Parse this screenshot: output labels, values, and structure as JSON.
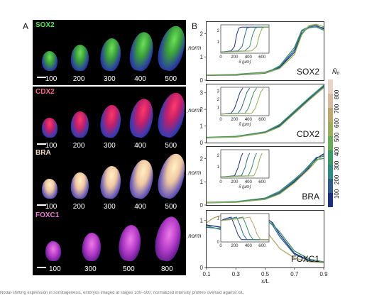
{
  "figure": {
    "panel_a_letter": "A",
    "panel_b_letter": "B",
    "caption": "Nodal-shifting expression in somitogenesis, embryos imaged at stages 100–500; normalized intensity profiles overlaid against x/L"
  },
  "micrographs": [
    {
      "marker": "SOX2",
      "label_color": "#62e25a",
      "stages": [
        "100",
        "200",
        "300",
        "400",
        "500"
      ],
      "tissue": "green"
    },
    {
      "marker": "CDX2",
      "label_color": "#f46a8a",
      "stages": [
        "100",
        "200",
        "300",
        "400",
        "500"
      ],
      "tissue": "red"
    },
    {
      "marker": "BRA",
      "label_color": "#f2d8c8",
      "stages": [
        "100",
        "200",
        "300",
        "400",
        "500"
      ],
      "tissue": "yellow"
    },
    {
      "marker": "FOXC1",
      "label_color": "#ea7ad6",
      "stages": [
        "100",
        "300",
        "500",
        "800"
      ],
      "tissue": "magenta"
    }
  ],
  "chart_data": [
    {
      "type": "line",
      "title": "SOX2",
      "ylabel": "I_norm",
      "ylim": [
        0,
        2.5
      ],
      "yticks": [
        "0",
        "1",
        "2"
      ],
      "xlim": [
        0.1,
        0.9
      ],
      "series": [
        {
          "color": "#1c2f7a",
          "x": [
            0.1,
            0.3,
            0.5,
            0.55,
            0.6,
            0.7,
            0.75,
            0.8,
            0.85,
            0.9
          ],
          "y": [
            0.2,
            0.22,
            0.3,
            0.4,
            0.55,
            1.2,
            2.0,
            2.3,
            2.35,
            2.2
          ]
        },
        {
          "color": "#2e6a8e",
          "x": [
            0.1,
            0.3,
            0.5,
            0.55,
            0.6,
            0.7,
            0.75,
            0.8,
            0.85,
            0.9
          ],
          "y": [
            0.2,
            0.24,
            0.32,
            0.42,
            0.58,
            1.3,
            2.1,
            2.25,
            2.3,
            2.25
          ]
        },
        {
          "color": "#3f8e6b",
          "x": [
            0.1,
            0.3,
            0.5,
            0.55,
            0.6,
            0.7,
            0.75,
            0.8,
            0.85,
            0.9
          ],
          "y": [
            0.22,
            0.25,
            0.34,
            0.45,
            0.62,
            1.4,
            2.15,
            2.3,
            2.28,
            2.15
          ]
        },
        {
          "color": "#93ad5a",
          "x": [
            0.1,
            0.3,
            0.5,
            0.55,
            0.6,
            0.7,
            0.75,
            0.8,
            0.85,
            0.9
          ],
          "y": [
            0.21,
            0.23,
            0.31,
            0.4,
            0.5,
            1.1,
            1.95,
            2.35,
            2.4,
            2.3
          ]
        }
      ],
      "inset": {
        "xticks": [
          "0",
          "200",
          "400",
          "600"
        ],
        "yticks": [
          "1",
          "2"
        ],
        "ylim": [
          0,
          2.5
        ],
        "xlim": [
          0,
          700
        ],
        "xlabel": "x̃ (μm)",
        "series": [
          {
            "color": "#1c2f7a",
            "x": [
              0,
              150,
              200,
              230,
              260,
              300,
              700
            ],
            "y": [
              0.1,
              0.2,
              0.6,
              1.6,
              2.2,
              2.3,
              2.3
            ]
          },
          {
            "color": "#2e6a8e",
            "x": [
              0,
              250,
              310,
              350,
              380,
              420,
              700
            ],
            "y": [
              0.1,
              0.2,
              0.6,
              1.6,
              2.2,
              2.3,
              2.3
            ]
          },
          {
            "color": "#3f8e6b",
            "x": [
              0,
              350,
              420,
              460,
              500,
              540,
              700
            ],
            "y": [
              0.1,
              0.2,
              0.6,
              1.6,
              2.2,
              2.3,
              2.3
            ]
          },
          {
            "color": "#93ad5a",
            "x": [
              0,
              450,
              520,
              560,
              600,
              640,
              700
            ],
            "y": [
              0.1,
              0.2,
              0.6,
              1.6,
              2.2,
              2.3,
              2.3
            ]
          }
        ]
      }
    },
    {
      "type": "line",
      "title": "CDX2",
      "ylabel": "I_norm",
      "ylim": [
        0,
        3.5
      ],
      "yticks": [
        "0",
        "1",
        "2",
        "3"
      ],
      "xlim": [
        0.1,
        0.9
      ],
      "series": [
        {
          "color": "#1c2f7a",
          "x": [
            0.1,
            0.3,
            0.5,
            0.6,
            0.7,
            0.8,
            0.9
          ],
          "y": [
            0.3,
            0.35,
            0.6,
            1.0,
            1.8,
            2.6,
            3.4
          ]
        },
        {
          "color": "#2e6a8e",
          "x": [
            0.1,
            0.3,
            0.5,
            0.6,
            0.7,
            0.8,
            0.9
          ],
          "y": [
            0.28,
            0.35,
            0.62,
            1.05,
            1.85,
            2.65,
            3.35
          ]
        },
        {
          "color": "#3f8e6b",
          "x": [
            0.1,
            0.3,
            0.5,
            0.6,
            0.7,
            0.8,
            0.9
          ],
          "y": [
            0.32,
            0.38,
            0.65,
            1.1,
            1.9,
            2.7,
            3.45
          ]
        },
        {
          "color": "#93ad5a",
          "x": [
            0.1,
            0.3,
            0.5,
            0.6,
            0.7,
            0.8,
            0.9
          ],
          "y": [
            0.3,
            0.33,
            0.58,
            0.95,
            1.75,
            2.55,
            3.3
          ]
        }
      ],
      "inset": {
        "xticks": [
          "0",
          "200",
          "400",
          "600"
        ],
        "yticks": [
          "1",
          "2",
          "3"
        ],
        "ylim": [
          0,
          3.5
        ],
        "xlim": [
          0,
          700
        ],
        "xlabel": "x̃ (μm)",
        "series": [
          {
            "color": "#1c2f7a",
            "x": [
              0,
              150,
              200,
              240,
              280,
              320
            ],
            "y": [
              0.2,
              0.3,
              0.9,
              1.9,
              2.9,
              3.4
            ]
          },
          {
            "color": "#2e6a8e",
            "x": [
              0,
              250,
              300,
              340,
              380,
              420
            ],
            "y": [
              0.2,
              0.3,
              0.9,
              1.9,
              2.9,
              3.4
            ]
          },
          {
            "color": "#3f8e6b",
            "x": [
              0,
              350,
              400,
              440,
              480,
              520
            ],
            "y": [
              0.2,
              0.3,
              0.9,
              1.9,
              2.9,
              3.4
            ]
          },
          {
            "color": "#93ad5a",
            "x": [
              0,
              450,
              500,
              540,
              580,
              620
            ],
            "y": [
              0.2,
              0.3,
              0.9,
              1.9,
              2.9,
              3.4
            ]
          }
        ]
      }
    },
    {
      "type": "line",
      "title": "BRA",
      "ylabel": "I_norm",
      "ylim": [
        0,
        2.5
      ],
      "yticks": [
        "0",
        "1",
        "2"
      ],
      "xlim": [
        0.1,
        0.9
      ],
      "series": [
        {
          "color": "#1c2f7a",
          "x": [
            0.1,
            0.3,
            0.5,
            0.6,
            0.7,
            0.8,
            0.85,
            0.9
          ],
          "y": [
            0.1,
            0.12,
            0.25,
            0.5,
            1.0,
            1.6,
            2.0,
            2.2
          ]
        },
        {
          "color": "#2e6a8e",
          "x": [
            0.1,
            0.3,
            0.5,
            0.6,
            0.7,
            0.8,
            0.85,
            0.9
          ],
          "y": [
            0.1,
            0.13,
            0.28,
            0.55,
            1.05,
            1.7,
            2.05,
            2.1
          ]
        },
        {
          "color": "#3f8e6b",
          "x": [
            0.1,
            0.3,
            0.5,
            0.6,
            0.7,
            0.8,
            0.85,
            0.9
          ],
          "y": [
            0.12,
            0.15,
            0.3,
            0.6,
            1.1,
            1.65,
            1.95,
            2.0
          ]
        },
        {
          "color": "#93ad5a",
          "x": [
            0.1,
            0.3,
            0.5,
            0.6,
            0.7,
            0.8,
            0.85,
            0.9
          ],
          "y": [
            0.1,
            0.12,
            0.24,
            0.48,
            0.95,
            1.55,
            1.9,
            2.15
          ]
        }
      ],
      "inset": {
        "xticks": [
          "0",
          "200",
          "400",
          "600"
        ],
        "yticks": [
          "1",
          "2"
        ],
        "ylim": [
          0,
          2.5
        ],
        "xlim": [
          0,
          700
        ],
        "xlabel": "x̃ (μm)",
        "series": [
          {
            "color": "#1c2f7a",
            "x": [
              0,
              200,
              250,
              290,
              320
            ],
            "y": [
              0.1,
              0.2,
              0.9,
              1.8,
              2.2
            ]
          },
          {
            "color": "#2e6a8e",
            "x": [
              0,
              300,
              350,
              390,
              420
            ],
            "y": [
              0.1,
              0.2,
              0.9,
              1.8,
              2.2
            ]
          },
          {
            "color": "#3f8e6b",
            "x": [
              0,
              400,
              450,
              490,
              520
            ],
            "y": [
              0.1,
              0.2,
              0.9,
              1.8,
              2.2
            ]
          },
          {
            "color": "#93ad5a",
            "x": [
              0,
              480,
              530,
              570,
              600
            ],
            "y": [
              0.1,
              0.2,
              0.9,
              1.8,
              2.2
            ]
          }
        ]
      }
    },
    {
      "type": "line",
      "title": "FOXC1",
      "ylabel": "I_norm",
      "ylim": [
        0,
        1.2
      ],
      "yticks": [
        "0",
        "1"
      ],
      "xlim": [
        0.1,
        0.9
      ],
      "xticks": [
        "0.1",
        "0.3",
        "0.5",
        "0.7",
        "0.9"
      ],
      "xlabel": "x/L",
      "series": [
        {
          "color": "#1c2f7a",
          "x": [
            0.1,
            0.2,
            0.3,
            0.4,
            0.45,
            0.5,
            0.55,
            0.6,
            0.7,
            0.8,
            0.9
          ],
          "y": [
            0.9,
            0.85,
            0.8,
            0.9,
            1.0,
            1.05,
            0.95,
            0.7,
            0.3,
            0.15,
            0.1
          ]
        },
        {
          "color": "#2e6a8e",
          "x": [
            0.1,
            0.2,
            0.3,
            0.4,
            0.45,
            0.5,
            0.55,
            0.6,
            0.7,
            0.8,
            0.9
          ],
          "y": [
            0.85,
            0.82,
            0.78,
            0.88,
            0.98,
            1.02,
            0.9,
            0.65,
            0.28,
            0.14,
            0.1
          ]
        },
        {
          "color": "#3f8e6b",
          "x": [
            0.1,
            0.2,
            0.3,
            0.4,
            0.45,
            0.5,
            0.55,
            0.6,
            0.7,
            0.8,
            0.9
          ],
          "y": [
            0.88,
            0.8,
            0.75,
            0.85,
            0.95,
            1.0,
            0.92,
            0.75,
            0.35,
            0.18,
            0.12
          ]
        },
        {
          "color": "#b8a36a",
          "x": [
            0.1,
            0.15,
            0.2,
            0.25,
            0.3,
            0.35,
            0.4,
            0.45,
            0.5,
            0.55,
            0.6,
            0.7,
            0.8,
            0.9
          ],
          "y": [
            0.95,
            1.05,
            1.1,
            1.08,
            1.0,
            0.95,
            0.9,
            0.85,
            0.8,
            0.6,
            0.4,
            0.2,
            0.12,
            0.1
          ]
        }
      ],
      "inset": {
        "xticks": [
          "0",
          "200",
          "400",
          "600"
        ],
        "yticks": [
          "0",
          "1"
        ],
        "ylim": [
          0,
          1.2
        ],
        "xlim": [
          0,
          700
        ],
        "xlabel": "",
        "series": [
          {
            "color": "#1c2f7a",
            "x": [
              0,
              80,
              150,
              200,
              250,
              300,
              700
            ],
            "y": [
              0.9,
              1.0,
              1.05,
              0.7,
              0.3,
              0.1,
              0.1
            ]
          },
          {
            "color": "#2e6a8e",
            "x": [
              0,
              150,
              230,
              280,
              330,
              380,
              700
            ],
            "y": [
              0.9,
              1.0,
              1.05,
              0.7,
              0.3,
              0.1,
              0.1
            ]
          },
          {
            "color": "#3f8e6b",
            "x": [
              0,
              230,
              320,
              370,
              420,
              470,
              700
            ],
            "y": [
              0.9,
              1.0,
              1.05,
              0.7,
              0.3,
              0.1,
              0.1
            ]
          },
          {
            "color": "#b8a36a",
            "x": [
              0,
              320,
              420,
              480,
              530,
              580,
              700
            ],
            "y": [
              0.9,
              1.0,
              1.05,
              0.7,
              0.3,
              0.1,
              0.1
            ]
          }
        ]
      }
    }
  ],
  "colorbar": {
    "title": "N̄₀",
    "ticks": [
      "100",
      "200",
      "300",
      "400",
      "500",
      "600",
      "700",
      "800"
    ],
    "colors": [
      "#1c2f7a",
      "#2c5b8c",
      "#2f8a82",
      "#3f9a6a",
      "#6aa85a",
      "#9aae5c",
      "#bfa870",
      "#d9b8a0",
      "#ecd3c8"
    ]
  }
}
